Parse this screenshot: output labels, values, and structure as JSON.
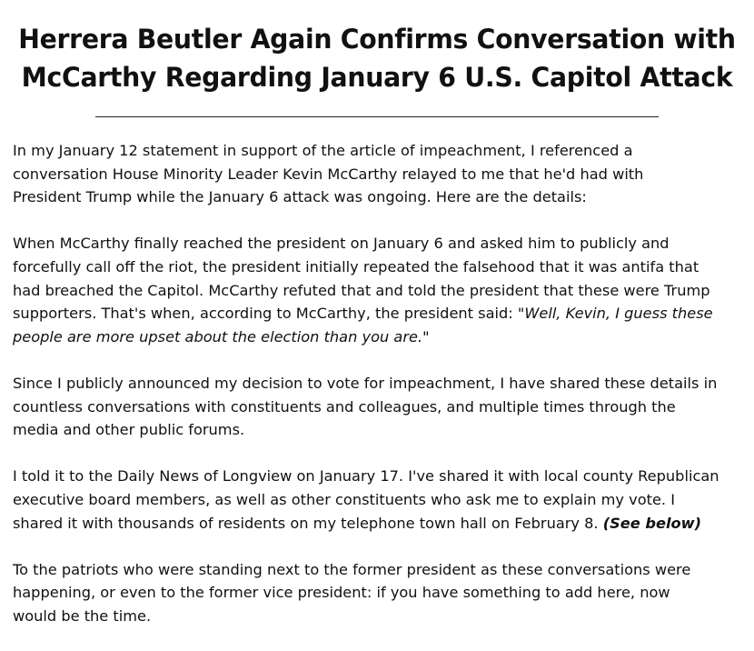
{
  "title": {
    "line1": "Herrera Beutler Again Confirms Conversation with",
    "line2": "McCarthy Regarding January 6 U.S. Capitol Attack"
  },
  "paragraphs": {
    "p1": {
      "l1": "In my January 12 statement in support of the article of impeachment, I referenced a",
      "l2": "conversation House Minority Leader Kevin McCarthy relayed to me that he'd had with",
      "l3": "President Trump while the January 6 attack was ongoing. Here are the details:"
    },
    "p2": {
      "l1": "When McCarthy finally reached the president on January 6 and asked him to publicly and",
      "l2": "forcefully call off the riot, the president initially repeated the falsehood that it was antifa that",
      "l3": "had breached the Capitol. McCarthy refuted that and told the president that these were Trump",
      "l4_plain": "supporters. That's when, according to McCarthy, the president said: ",
      "l4_quote": "\"Well, Kevin, I guess these",
      "l5_quote": "people are more upset about the election than you are.\""
    },
    "p3": {
      "l1": "Since I publicly announced my decision to vote for impeachment, I have shared these details in",
      "l2": "countless conversations with constituents and colleagues, and multiple times through the",
      "l3": "media and other public forums."
    },
    "p4": {
      "l1": "I told it to the Daily News of Longview on January 17. I've shared it with local county Republican",
      "l2": "executive board members, as well as other constituents who ask me to explain my vote. I",
      "l3_plain": "shared it with thousands of residents on my telephone town hall on February 8. ",
      "l3_emph": "(See below)"
    },
    "p5": {
      "l1": "To the patriots who were standing next to the former president as these conversations were",
      "l2": "happening, or even to the former vice president: if you have something to add here, now",
      "l3": "would be the time."
    }
  }
}
